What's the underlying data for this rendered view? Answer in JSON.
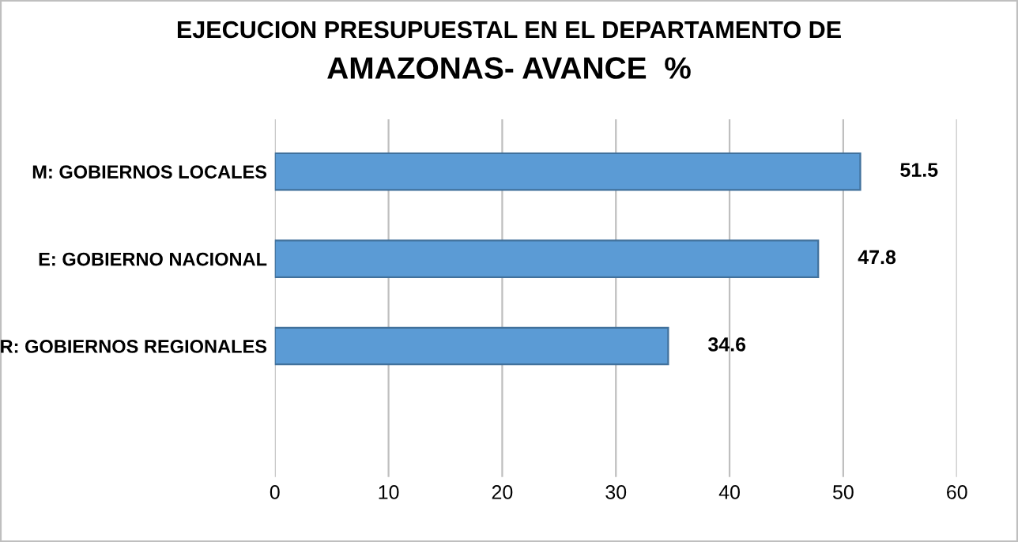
{
  "chart_data": {
    "type": "bar",
    "orientation": "horizontal",
    "title": "EJECUCION PRESUPUESTAL EN EL DEPARTAMENTO DE",
    "subtitle": "AMAZONAS- AVANCE  %",
    "categories": [
      "M: GOBIERNOS LOCALES",
      "E: GOBIERNO NACIONAL",
      "R: GOBIERNOS REGIONALES"
    ],
    "values": [
      51.5,
      47.8,
      34.6
    ],
    "color": "#5b9bd5",
    "data_labels": true,
    "xlim": [
      0,
      60
    ],
    "xticks": [
      0,
      10,
      20,
      30,
      40,
      50,
      60
    ],
    "grid": "x",
    "legend": false
  }
}
